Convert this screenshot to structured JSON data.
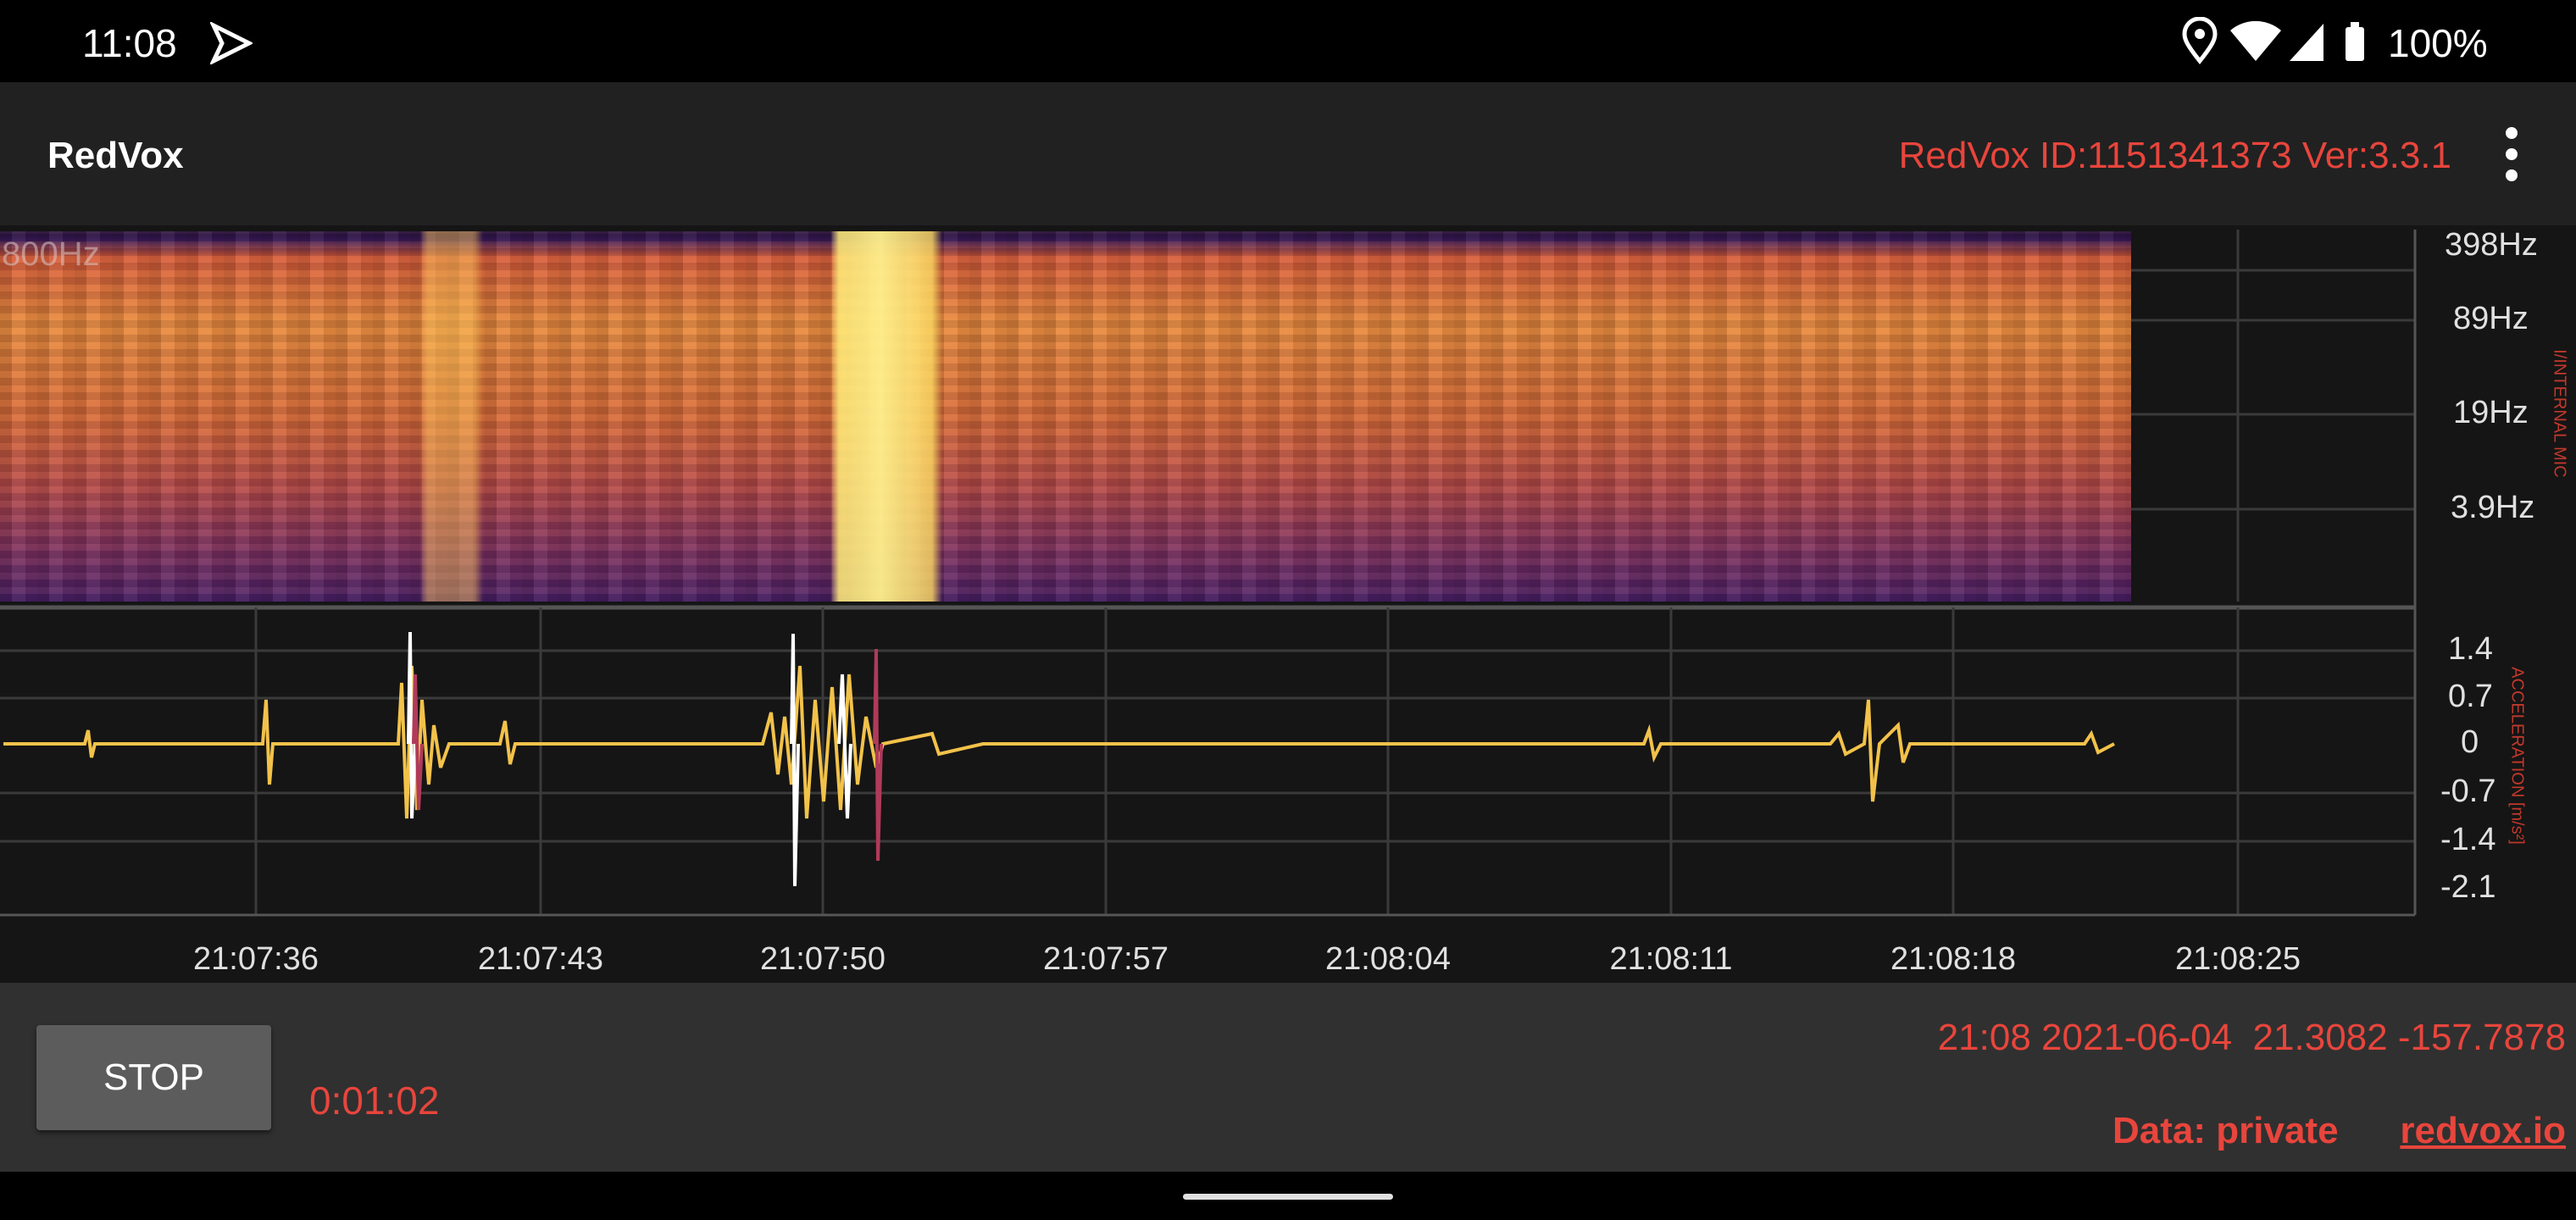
{
  "status_bar": {
    "time": "11:08",
    "battery": "100%"
  },
  "app_bar": {
    "title": "RedVox",
    "device_info": "RedVox ID:1151341373 Ver:3.3.1"
  },
  "spectrogram": {
    "overlay_label": "800Hz",
    "y_labels": [
      "398Hz",
      "89Hz",
      "19Hz",
      "3.9Hz"
    ],
    "side_label": "I/INTERNAL MIC"
  },
  "waveform": {
    "y_labels": [
      "1.4",
      "0.7",
      "0",
      "-0.7",
      "-1.4",
      "-2.1"
    ],
    "side_label": "ACCELERATION [m/s²]"
  },
  "time_axis": {
    "labels": [
      "21:07:36",
      "21:07:43",
      "21:07:50",
      "21:07:57",
      "21:08:04",
      "21:08:11",
      "21:08:18",
      "21:08:25"
    ]
  },
  "footer": {
    "button": "STOP",
    "elapsed": "0:01:02",
    "timestamp_location": "21:08 2021-06-04  21.3082 -157.7878",
    "privacy": "Data: private",
    "link": "redvox.io"
  }
}
